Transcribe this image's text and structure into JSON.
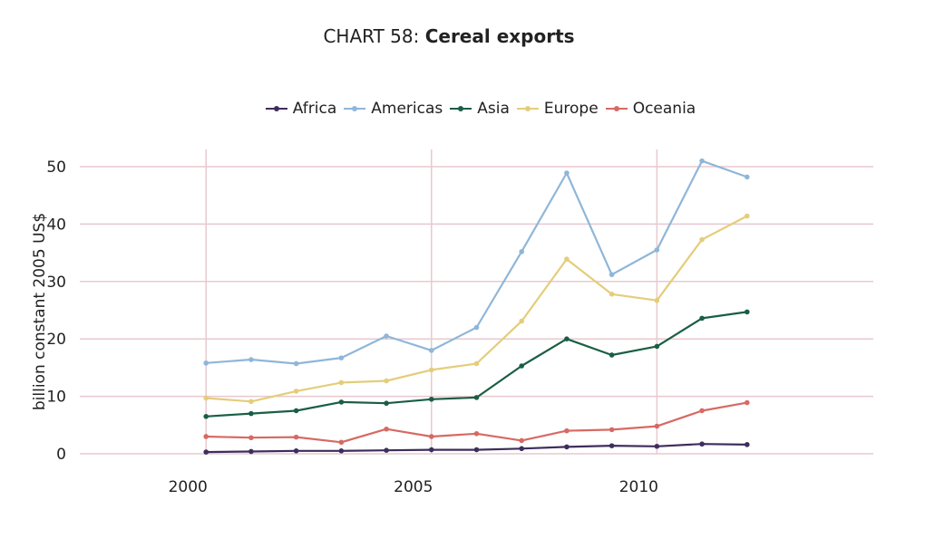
{
  "title_prefix": "CHART 58: ",
  "title_bold": "Cereal exports",
  "chart_data": {
    "type": "line",
    "title": "CHART 58: Cereal exports",
    "xlabel": "",
    "ylabel": "billion constant 2005 US$",
    "x": [
      2000,
      2001,
      2002,
      2003,
      2004,
      2005,
      2006,
      2007,
      2008,
      2009,
      2010,
      2011,
      2012
    ],
    "x_ticks": [
      2000,
      2005,
      2010
    ],
    "y_ticks": [
      0,
      10,
      20,
      30,
      40,
      50
    ],
    "xlim": [
      1997.2,
      2014.8
    ],
    "ylim": [
      0,
      53
    ],
    "grid": true,
    "legend_position": "top",
    "series": [
      {
        "name": "Africa",
        "color": "#3f2d5c",
        "values": [
          0.3,
          0.4,
          0.5,
          0.5,
          0.6,
          0.7,
          0.7,
          0.9,
          1.2,
          1.4,
          1.3,
          1.7,
          1.6
        ]
      },
      {
        "name": "Americas",
        "color": "#8fb6d9",
        "values": [
          15.8,
          16.4,
          15.7,
          16.7,
          20.5,
          18.0,
          22.0,
          35.2,
          48.9,
          31.2,
          35.5,
          51.0,
          48.2
        ]
      },
      {
        "name": "Asia",
        "color": "#1a5e45",
        "values": [
          6.5,
          7.0,
          7.5,
          9.0,
          8.8,
          9.5,
          9.8,
          15.3,
          20.0,
          17.2,
          18.7,
          23.6,
          24.7
        ]
      },
      {
        "name": "Europe",
        "color": "#e4cd7a",
        "values": [
          9.7,
          9.1,
          10.9,
          12.4,
          12.7,
          14.6,
          15.7,
          23.1,
          33.9,
          27.8,
          26.7,
          37.3,
          41.4
        ]
      },
      {
        "name": "Oceania",
        "color": "#d66a63",
        "values": [
          3.0,
          2.8,
          2.9,
          2.0,
          4.3,
          3.0,
          3.5,
          2.3,
          4.0,
          4.2,
          4.8,
          7.5,
          8.9
        ]
      }
    ]
  }
}
